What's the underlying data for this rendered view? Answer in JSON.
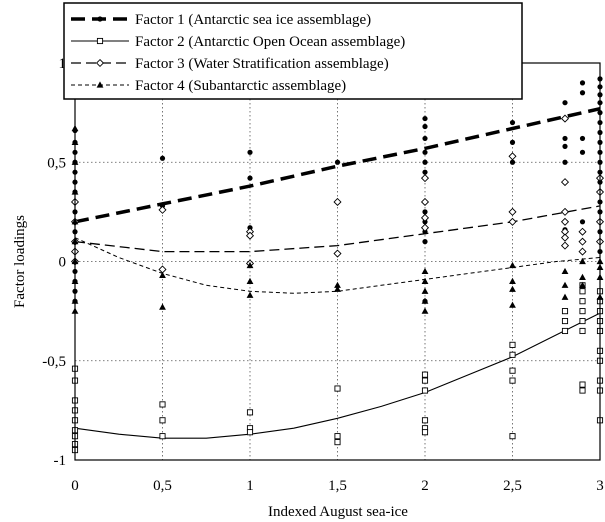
{
  "chart_data": {
    "type": "scatter",
    "xlabel": "Indexed August sea-ice",
    "ylabel": "Factor loadings",
    "xlim": [
      0,
      3
    ],
    "ylim": [
      -1,
      1
    ],
    "x_ticks": [
      "0",
      "0,5",
      "1",
      "1,5",
      "2",
      "2,5",
      "3"
    ],
    "y_ticks": [
      "1",
      "0,5",
      "0",
      "-0,5",
      "-1"
    ],
    "grid": true,
    "legend_position": "top-left",
    "series": [
      {
        "name": "Factor 1 (Antarctic sea ice assemblage)",
        "marker": "filled-circle",
        "line": "heavy-dash",
        "trend": [
          [
            0,
            0.2
          ],
          [
            0.5,
            0.29
          ],
          [
            1,
            0.38
          ],
          [
            1.5,
            0.48
          ],
          [
            2,
            0.57
          ],
          [
            2.5,
            0.67
          ],
          [
            3,
            0.77
          ]
        ],
        "points": [
          [
            0,
            0.66
          ],
          [
            0,
            0.6
          ],
          [
            0,
            0.55
          ],
          [
            0,
            0.5
          ],
          [
            0,
            0.45
          ],
          [
            0,
            0.4
          ],
          [
            0,
            0.35
          ],
          [
            0,
            0.3
          ],
          [
            0,
            0.25
          ],
          [
            0,
            0.2
          ],
          [
            0,
            0.15
          ],
          [
            0,
            0.1
          ],
          [
            0,
            0.05
          ],
          [
            0,
            0.0
          ],
          [
            0,
            -0.05
          ],
          [
            0,
            -0.1
          ],
          [
            0,
            -0.15
          ],
          [
            0,
            -0.2
          ],
          [
            0.5,
            0.52
          ],
          [
            0.5,
            0.28
          ],
          [
            1,
            0.55
          ],
          [
            1,
            0.42
          ],
          [
            1,
            0.17
          ],
          [
            1.5,
            0.5
          ],
          [
            1.5,
            0.3
          ],
          [
            2,
            0.72
          ],
          [
            2,
            0.68
          ],
          [
            2,
            0.62
          ],
          [
            2,
            0.55
          ],
          [
            2,
            0.5
          ],
          [
            2,
            0.45
          ],
          [
            2,
            0.3
          ],
          [
            2,
            0.25
          ],
          [
            2,
            0.2
          ],
          [
            2,
            0.15
          ],
          [
            2,
            0.1
          ],
          [
            2,
            -0.2
          ],
          [
            2.5,
            0.7
          ],
          [
            2.5,
            0.6
          ],
          [
            2.5,
            0.5
          ],
          [
            2.8,
            0.8
          ],
          [
            2.8,
            0.62
          ],
          [
            2.8,
            0.58
          ],
          [
            2.8,
            0.5
          ],
          [
            2.8,
            0.25
          ],
          [
            2.8,
            0.2
          ],
          [
            2.8,
            0.16
          ],
          [
            2.8,
            0.12
          ],
          [
            2.8,
            0.08
          ],
          [
            2.9,
            0.9
          ],
          [
            2.9,
            0.85
          ],
          [
            2.9,
            0.62
          ],
          [
            2.9,
            0.55
          ],
          [
            2.9,
            0.2
          ],
          [
            2.9,
            0.15
          ],
          [
            2.9,
            0.1
          ],
          [
            2.9,
            0.05
          ],
          [
            3,
            0.92
          ],
          [
            3,
            0.88
          ],
          [
            3,
            0.84
          ],
          [
            3,
            0.8
          ],
          [
            3,
            0.75
          ],
          [
            3,
            0.7
          ],
          [
            3,
            0.65
          ],
          [
            3,
            0.6
          ],
          [
            3,
            0.55
          ],
          [
            3,
            0.5
          ],
          [
            3,
            0.45
          ],
          [
            3,
            0.4
          ],
          [
            3,
            0.35
          ],
          [
            3,
            0.3
          ],
          [
            3,
            0.25
          ],
          [
            3,
            0.2
          ],
          [
            3,
            0.15
          ],
          [
            3,
            0.1
          ],
          [
            3,
            0.05
          ]
        ]
      },
      {
        "name": "Factor 2 (Antarctic Open Ocean assemblage)",
        "marker": "open-square",
        "line": "solid-thin",
        "trend": [
          [
            0,
            -0.84
          ],
          [
            0.25,
            -0.87
          ],
          [
            0.5,
            -0.89
          ],
          [
            0.75,
            -0.89
          ],
          [
            1,
            -0.87
          ],
          [
            1.25,
            -0.84
          ],
          [
            1.5,
            -0.79
          ],
          [
            1.75,
            -0.73
          ],
          [
            2,
            -0.66
          ],
          [
            2.25,
            -0.57
          ],
          [
            2.5,
            -0.48
          ],
          [
            2.75,
            -0.37
          ],
          [
            3,
            -0.26
          ]
        ],
        "points": [
          [
            0,
            -0.54
          ],
          [
            0,
            -0.6
          ],
          [
            0,
            -0.7
          ],
          [
            0,
            -0.75
          ],
          [
            0,
            -0.8
          ],
          [
            0,
            -0.85
          ],
          [
            0,
            -0.88
          ],
          [
            0,
            -0.92
          ],
          [
            0,
            -0.95
          ],
          [
            0.5,
            -0.72
          ],
          [
            0.5,
            -0.8
          ],
          [
            0.5,
            -0.88
          ],
          [
            1,
            -0.76
          ],
          [
            1,
            -0.84
          ],
          [
            1,
            -0.86
          ],
          [
            1.5,
            -0.64
          ],
          [
            1.5,
            -0.88
          ],
          [
            1.5,
            -0.91
          ],
          [
            2,
            -0.57
          ],
          [
            2,
            -0.6
          ],
          [
            2,
            -0.65
          ],
          [
            2,
            -0.8
          ],
          [
            2,
            -0.84
          ],
          [
            2,
            -0.86
          ],
          [
            2.5,
            -0.42
          ],
          [
            2.5,
            -0.47
          ],
          [
            2.5,
            -0.55
          ],
          [
            2.5,
            -0.6
          ],
          [
            2.5,
            -0.88
          ],
          [
            2.8,
            -0.35
          ],
          [
            2.8,
            -0.3
          ],
          [
            2.8,
            -0.25
          ],
          [
            2.9,
            -0.2
          ],
          [
            2.9,
            -0.15
          ],
          [
            2.9,
            -0.25
          ],
          [
            2.9,
            -0.3
          ],
          [
            2.9,
            -0.35
          ],
          [
            2.9,
            -0.12
          ],
          [
            2.9,
            -0.65
          ],
          [
            2.9,
            -0.62
          ],
          [
            3,
            -0.15
          ],
          [
            3,
            -0.2
          ],
          [
            3,
            -0.25
          ],
          [
            3,
            -0.3
          ],
          [
            3,
            -0.35
          ],
          [
            3,
            -0.45
          ],
          [
            3,
            -0.5
          ],
          [
            3,
            -0.6
          ],
          [
            3,
            -0.65
          ],
          [
            3,
            -0.8
          ]
        ]
      },
      {
        "name": "Factor 3 (Water Stratification assemblage)",
        "marker": "open-diamond",
        "line": "medium-dash",
        "trend": [
          [
            0,
            0.1
          ],
          [
            0.5,
            0.05
          ],
          [
            1,
            0.05
          ],
          [
            1.5,
            0.08
          ],
          [
            2,
            0.14
          ],
          [
            2.5,
            0.2
          ],
          [
            3,
            0.28
          ]
        ],
        "points": [
          [
            0,
            0.3
          ],
          [
            0,
            0.2
          ],
          [
            0,
            0.1
          ],
          [
            0,
            0.05
          ],
          [
            0,
            0.0
          ],
          [
            0.5,
            0.26
          ],
          [
            0.5,
            -0.04
          ],
          [
            1,
            0.15
          ],
          [
            1,
            0.13
          ],
          [
            1,
            -0.01
          ],
          [
            1.5,
            0.3
          ],
          [
            1.5,
            0.04
          ],
          [
            2,
            0.42
          ],
          [
            2,
            0.3
          ],
          [
            2,
            0.22
          ],
          [
            2,
            0.17
          ],
          [
            2.5,
            0.53
          ],
          [
            2.5,
            0.25
          ],
          [
            2.5,
            0.2
          ],
          [
            2.8,
            0.72
          ],
          [
            2.8,
            0.4
          ],
          [
            2.8,
            0.25
          ],
          [
            2.8,
            0.2
          ],
          [
            2.8,
            0.15
          ],
          [
            2.8,
            0.12
          ],
          [
            2.8,
            0.08
          ],
          [
            2.9,
            0.15
          ],
          [
            2.9,
            0.1
          ],
          [
            2.9,
            0.05
          ],
          [
            3,
            0.42
          ],
          [
            3,
            0.35
          ],
          [
            3,
            0.2
          ],
          [
            3,
            0.1
          ]
        ]
      },
      {
        "name": "Factor 4 (Subantarctic assemblage)",
        "marker": "filled-triangle",
        "line": "fine-dash",
        "trend": [
          [
            0,
            0.12
          ],
          [
            0.25,
            0.02
          ],
          [
            0.5,
            -0.06
          ],
          [
            0.75,
            -0.12
          ],
          [
            1,
            -0.15
          ],
          [
            1.25,
            -0.16
          ],
          [
            1.5,
            -0.15
          ],
          [
            1.75,
            -0.12
          ],
          [
            2,
            -0.09
          ],
          [
            2.25,
            -0.06
          ],
          [
            2.5,
            -0.03
          ],
          [
            2.75,
            0.0
          ],
          [
            3,
            0.02
          ]
        ],
        "points": [
          [
            0,
            0.67
          ],
          [
            0,
            0.6
          ],
          [
            0,
            0.5
          ],
          [
            0,
            0.35
          ],
          [
            0,
            0.2
          ],
          [
            0,
            0.1
          ],
          [
            0,
            0.0
          ],
          [
            0,
            -0.1
          ],
          [
            0,
            -0.2
          ],
          [
            0,
            -0.25
          ],
          [
            0.5,
            -0.07
          ],
          [
            0.5,
            -0.23
          ],
          [
            1,
            -0.02
          ],
          [
            1,
            -0.1
          ],
          [
            1,
            -0.17
          ],
          [
            1.5,
            -0.12
          ],
          [
            1.5,
            -0.14
          ],
          [
            2,
            -0.05
          ],
          [
            2,
            -0.1
          ],
          [
            2,
            -0.15
          ],
          [
            2,
            -0.2
          ],
          [
            2,
            -0.25
          ],
          [
            2.5,
            -0.02
          ],
          [
            2.5,
            -0.1
          ],
          [
            2.5,
            -0.14
          ],
          [
            2.5,
            -0.22
          ],
          [
            2.8,
            -0.05
          ],
          [
            2.8,
            -0.12
          ],
          [
            2.8,
            -0.18
          ],
          [
            2.9,
            0.0
          ],
          [
            2.9,
            -0.08
          ],
          [
            2.9,
            -0.12
          ],
          [
            3,
            0.0
          ],
          [
            3,
            -0.03
          ],
          [
            3,
            -0.08
          ],
          [
            3,
            -0.18
          ]
        ]
      }
    ]
  }
}
